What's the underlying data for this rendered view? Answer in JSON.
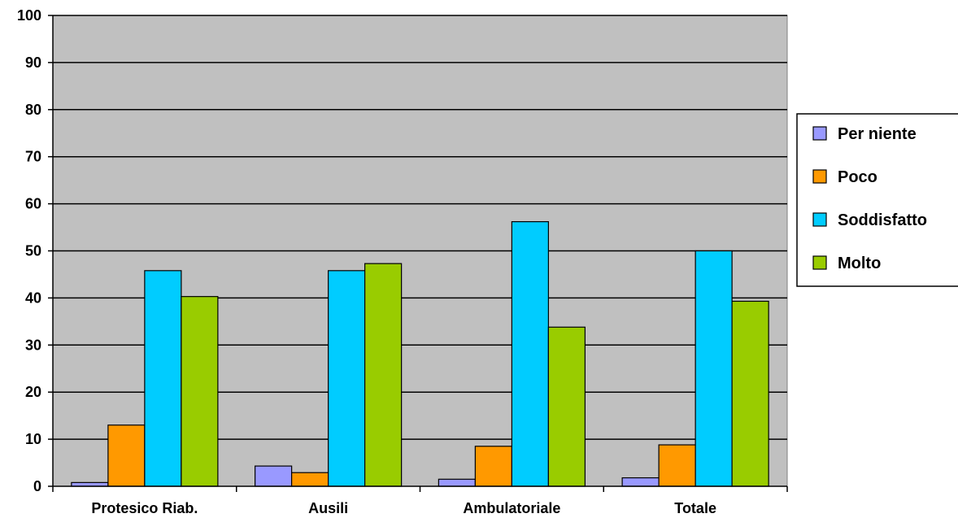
{
  "chart_data": {
    "type": "bar",
    "title": "",
    "xlabel": "",
    "ylabel": "",
    "categories": [
      "Protesico Riab.",
      "Ausili",
      "Ambulatoriale",
      "Totale"
    ],
    "series": [
      {
        "name": "Per niente",
        "color": "#9999ff",
        "values": [
          0.8,
          4.3,
          1.5,
          1.8
        ]
      },
      {
        "name": "Poco",
        "color": "#ff9900",
        "values": [
          13.0,
          2.9,
          8.5,
          8.8
        ]
      },
      {
        "name": "Soddisfatto",
        "color": "#00ccff",
        "values": [
          45.8,
          45.8,
          56.2,
          50.0
        ]
      },
      {
        "name": "Molto",
        "color": "#99cc00",
        "values": [
          40.3,
          47.3,
          33.8,
          39.3
        ]
      }
    ],
    "ylim": [
      0,
      100
    ],
    "yticks": [
      0,
      10,
      20,
      30,
      40,
      50,
      60,
      70,
      80,
      90,
      100
    ],
    "grid": true,
    "legend_position": "right",
    "plot_background": "#c0c0c0"
  }
}
